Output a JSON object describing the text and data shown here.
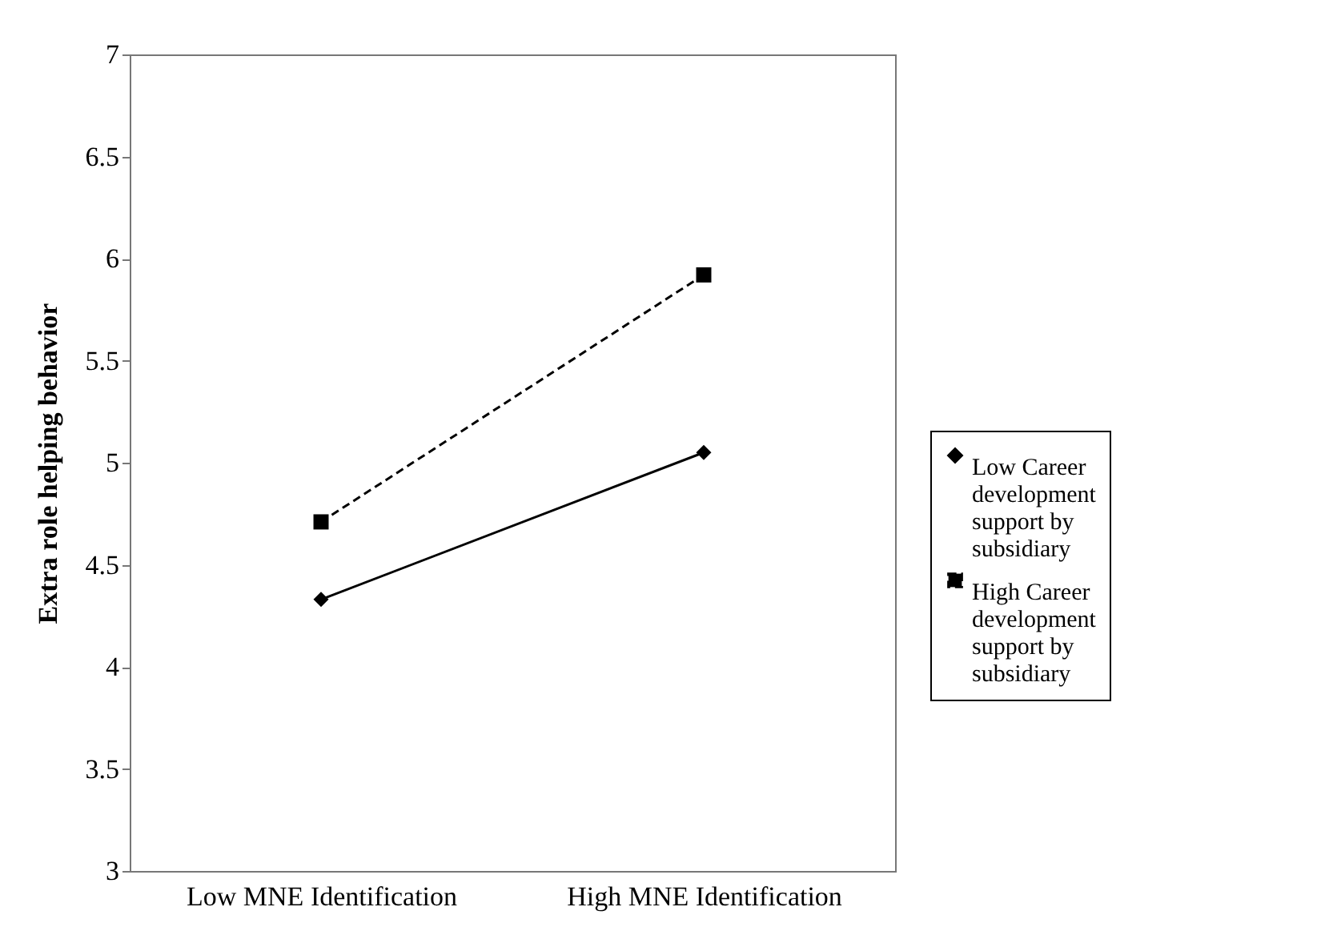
{
  "chart_data": {
    "type": "line",
    "ylabel": "Extra role helping behavior",
    "categories": [
      "Low MNE Identification",
      "High MNE Identification"
    ],
    "series": [
      {
        "name": "Low Career development support by subsidiary",
        "color": "#000000",
        "values": [
          4.33,
          5.05
        ],
        "marker": "diamond",
        "line_style": "solid"
      },
      {
        "name": "High Career development support by subsidiary",
        "color": "#000000",
        "values": [
          4.71,
          5.92
        ],
        "marker": "square",
        "line_style": "dashed"
      }
    ],
    "ylim": [
      3,
      7
    ],
    "yticks": [
      3,
      3.5,
      4,
      4.5,
      5,
      5.5,
      6,
      6.5,
      7
    ],
    "grid": false,
    "legend": "right"
  }
}
